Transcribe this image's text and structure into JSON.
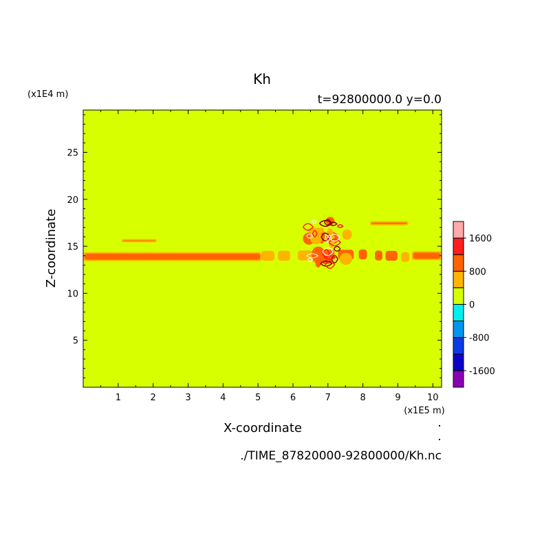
{
  "chart_data": {
    "type": "heatmap",
    "title": "Kh",
    "subtitle": "t=92800000.0 y=0.0",
    "xlabel": "X-coordinate",
    "ylabel": "Z-coordinate",
    "x_unit": "(x1E5 m)",
    "y_unit": "(x1E4 m)",
    "footer": "./TIME_87820000-92800000/Kh.nc",
    "xlim": [
      0,
      10.25
    ],
    "ylim": [
      0,
      29.5
    ],
    "xticks": [
      "1",
      "2",
      "3",
      "4",
      "5",
      "6",
      "7",
      "8",
      "9",
      "10"
    ],
    "yticks": [
      "5",
      "10",
      "15",
      "20",
      "25"
    ],
    "background_level": 0,
    "colorbar": {
      "levels": [
        -2000,
        -1600,
        -1200,
        -800,
        -400,
        0,
        400,
        800,
        1200,
        1600,
        2000
      ],
      "colors": [
        "#8a00b4",
        "#0c00c8",
        "#0a3ce6",
        "#0096f0",
        "#00f0f0",
        "#d7ff00",
        "#ffb400",
        "#ff6400",
        "#ff1e1e",
        "#ffaaaa"
      ],
      "labels": [
        "-1600",
        "-800",
        "0",
        "800",
        "1600"
      ]
    },
    "features": [
      {
        "name": "main-band",
        "value": 1000,
        "x": [
          0.0,
          5.1
        ],
        "z": [
          13.5,
          14.3
        ]
      },
      {
        "name": "main-band-right",
        "value": 1000,
        "x": [
          9.4,
          10.25
        ],
        "z": [
          13.6,
          14.4
        ]
      },
      {
        "name": "band-patches-mid",
        "value": 800,
        "x": [
          5.1,
          9.3
        ],
        "z": [
          13.4,
          14.6
        ]
      },
      {
        "name": "upper-streak-left",
        "value": 800,
        "x": [
          1.1,
          2.1
        ],
        "z": [
          15.5,
          15.7
        ]
      },
      {
        "name": "upper-streak-right",
        "value": 800,
        "x": [
          8.2,
          9.3
        ],
        "z": [
          17.3,
          17.6
        ]
      },
      {
        "name": "turbulent-cell",
        "value": 1600,
        "x": [
          6.4,
          7.6
        ],
        "z": [
          13.0,
          17.8
        ]
      }
    ]
  }
}
